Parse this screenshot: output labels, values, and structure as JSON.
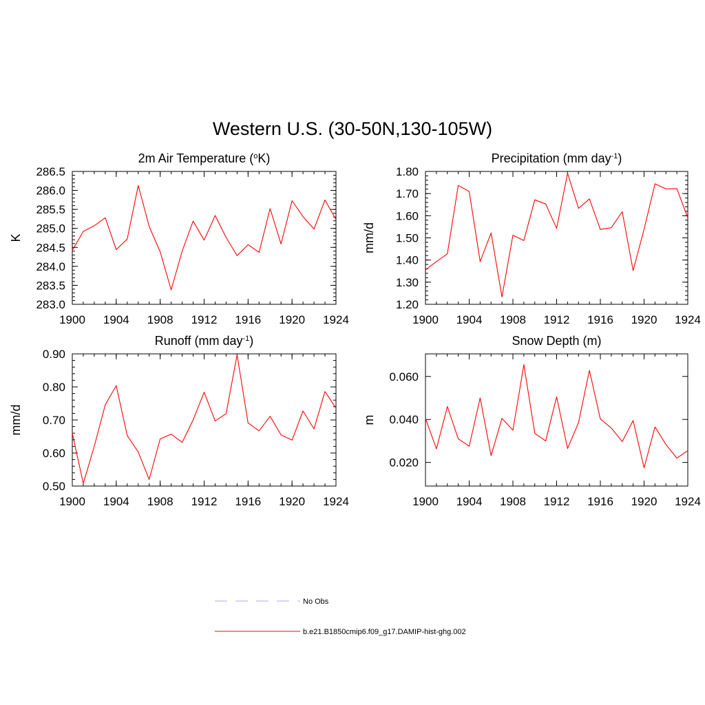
{
  "figure": {
    "title": "Western U.S. (30-50N,130-105W)"
  },
  "chart_data": [
    {
      "type": "line",
      "title": "2m Air Temperature (oK)",
      "title_parts": [
        {
          "t": "2m Air Temperature ("
        },
        {
          "t": "o",
          "sup": true
        },
        {
          "t": "K)"
        }
      ],
      "ylabel": "K",
      "xlim": [
        1900,
        1924
      ],
      "ylim": [
        283.0,
        286.5
      ],
      "x_ticks": [
        1900,
        1904,
        1908,
        1912,
        1916,
        1920,
        1924
      ],
      "y_ticks": [
        "283.0",
        "283.5",
        "284.0",
        "284.5",
        "285.0",
        "285.5",
        "286.0",
        "286.5"
      ],
      "y_minor_step": 0.1,
      "x": [
        1900,
        1901,
        1902,
        1903,
        1904,
        1905,
        1906,
        1907,
        1908,
        1909,
        1910,
        1911,
        1912,
        1913,
        1914,
        1915,
        1916,
        1917,
        1918,
        1919,
        1920,
        1921,
        1922,
        1923,
        1924
      ],
      "series": [
        {
          "name": "b.e21.B1850cmip6.f09_g17.DAMIP-hist-ghg.002",
          "color": "#ff0000",
          "values": [
            284.42,
            284.92,
            285.07,
            285.28,
            284.44,
            284.72,
            286.13,
            285.05,
            284.38,
            283.38,
            284.4,
            285.19,
            284.69,
            285.34,
            284.76,
            284.28,
            284.57,
            284.37,
            285.52,
            284.59,
            285.73,
            285.31,
            284.98,
            285.75,
            285.23
          ]
        }
      ]
    },
    {
      "type": "line",
      "title": "Precipitation (mm day-1)",
      "title_parts": [
        {
          "t": "Precipitation (mm day"
        },
        {
          "t": "-1",
          "sup": true
        },
        {
          "t": ")"
        }
      ],
      "ylabel": "mm/d",
      "xlim": [
        1900,
        1924
      ],
      "ylim": [
        1.2,
        1.8
      ],
      "x_ticks": [
        1900,
        1904,
        1908,
        1912,
        1916,
        1920,
        1924
      ],
      "y_ticks": [
        "1.20",
        "1.30",
        "1.40",
        "1.50",
        "1.60",
        "1.70",
        "1.80"
      ],
      "y_minor_step": 0.02,
      "x": [
        1900,
        1901,
        1902,
        1903,
        1904,
        1905,
        1906,
        1907,
        1908,
        1909,
        1910,
        1911,
        1912,
        1913,
        1914,
        1915,
        1916,
        1917,
        1918,
        1919,
        1920,
        1921,
        1922,
        1923,
        1924
      ],
      "series": [
        {
          "name": "b.e21.B1850cmip6.f09_g17.DAMIP-hist-ghg.002",
          "color": "#ff0000",
          "values": [
            1.355,
            1.393,
            1.428,
            1.737,
            1.71,
            1.393,
            1.522,
            1.233,
            1.512,
            1.488,
            1.672,
            1.653,
            1.543,
            1.792,
            1.633,
            1.676,
            1.538,
            1.546,
            1.618,
            1.352,
            1.539,
            1.744,
            1.721,
            1.722,
            1.59
          ]
        }
      ]
    },
    {
      "type": "line",
      "title": "Runoff (mm day-1)",
      "title_parts": [
        {
          "t": "Runoff (mm day"
        },
        {
          "t": "-1",
          "sup": true
        },
        {
          "t": ")"
        }
      ],
      "ylabel": "mm/d",
      "xlim": [
        1900,
        1924
      ],
      "ylim": [
        0.5,
        0.9
      ],
      "x_ticks": [
        1900,
        1904,
        1908,
        1912,
        1916,
        1920,
        1924
      ],
      "y_ticks": [
        "0.50",
        "0.60",
        "0.70",
        "0.80",
        "0.90"
      ],
      "y_minor_step": 0.02,
      "x": [
        1900,
        1901,
        1902,
        1903,
        1904,
        1905,
        1906,
        1907,
        1908,
        1909,
        1910,
        1911,
        1912,
        1913,
        1914,
        1915,
        1916,
        1917,
        1918,
        1919,
        1920,
        1921,
        1922,
        1923,
        1924
      ],
      "series": [
        {
          "name": "b.e21.B1850cmip6.f09_g17.DAMIP-hist-ghg.002",
          "color": "#ff0000",
          "values": [
            0.66,
            0.508,
            0.62,
            0.746,
            0.804,
            0.653,
            0.603,
            0.52,
            0.643,
            0.657,
            0.632,
            0.7,
            0.784,
            0.697,
            0.719,
            0.897,
            0.691,
            0.667,
            0.711,
            0.655,
            0.639,
            0.727,
            0.673,
            0.786,
            0.736
          ]
        }
      ]
    },
    {
      "type": "line",
      "title": "Snow Depth (m)",
      "title_parts": [
        {
          "t": "Snow Depth (m)"
        }
      ],
      "ylabel": "m",
      "xlim": [
        1900,
        1924
      ],
      "ylim": [
        0.009,
        0.0705
      ],
      "x_ticks": [
        1900,
        1904,
        1908,
        1912,
        1916,
        1920,
        1924
      ],
      "y_ticks": [
        "0.020",
        "0.040",
        "0.060"
      ],
      "y_minor_step": null,
      "x": [
        1900,
        1901,
        1902,
        1903,
        1904,
        1905,
        1906,
        1907,
        1908,
        1909,
        1910,
        1911,
        1912,
        1913,
        1914,
        1915,
        1916,
        1917,
        1918,
        1919,
        1920,
        1921,
        1922,
        1923,
        1924
      ],
      "series": [
        {
          "name": "b.e21.B1850cmip6.f09_g17.DAMIP-hist-ghg.002",
          "color": "#ff0000",
          "values": [
            0.0405,
            0.0263,
            0.046,
            0.031,
            0.0275,
            0.05,
            0.0232,
            0.0405,
            0.035,
            0.0655,
            0.0335,
            0.03,
            0.0505,
            0.0265,
            0.0385,
            0.0628,
            0.0402,
            0.036,
            0.0297,
            0.0395,
            0.0175,
            0.0365,
            0.0283,
            0.022,
            0.0255
          ]
        }
      ]
    }
  ],
  "legend": {
    "entries": [
      {
        "label": "No Obs",
        "color": "#aaaaff",
        "dash": true
      },
      {
        "label": "b.e21.B1850cmip6.f09_g17.DAMIP-hist-ghg.002",
        "color": "#ff0000",
        "dash": false
      }
    ]
  }
}
